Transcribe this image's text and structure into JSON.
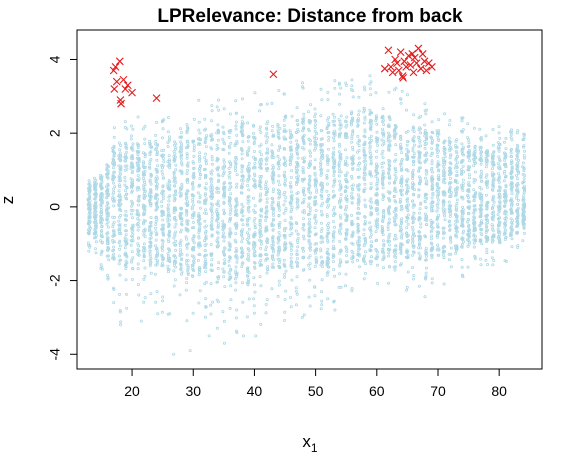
{
  "chart_data": {
    "type": "scatter",
    "title": "LPRelevance: Distance from back",
    "xlabel": "x",
    "xlabel_subscript": "1",
    "ylabel": "z",
    "xlim": [
      11,
      87
    ],
    "ylim": [
      -4.4,
      4.8
    ],
    "xticks": [
      20,
      30,
      40,
      50,
      60,
      70,
      80
    ],
    "yticks": [
      -4,
      -2,
      0,
      2,
      4
    ],
    "grid": false,
    "legend": "none",
    "colors": {
      "background_points": "#add8e6",
      "highlight_points": "#e31a1c"
    },
    "series": [
      {
        "marker": "circle",
        "color": "#add8e6",
        "band_columns": {
          "x": [
            13,
            14,
            15,
            16,
            17,
            18,
            19,
            20,
            21,
            22,
            23,
            24,
            25,
            26,
            27,
            28,
            29,
            30,
            31,
            32,
            33,
            34,
            35,
            36,
            37,
            38,
            39,
            40,
            41,
            42,
            43,
            44,
            45,
            46,
            47,
            48,
            49,
            50,
            51,
            52,
            53,
            54,
            55,
            56,
            57,
            58,
            59,
            60,
            61,
            62,
            63,
            64,
            65,
            66,
            67,
            68,
            69,
            70,
            71,
            72,
            73,
            74,
            75,
            76,
            77,
            78,
            79,
            80,
            81,
            82,
            83,
            84
          ],
          "z_low": [
            -1.2,
            -1.5,
            -1.7,
            -2.0,
            -2.4,
            -3.2,
            -2.8,
            -2.5,
            -2.6,
            -2.7,
            -2.6,
            -2.8,
            -2.9,
            -3.0,
            -2.9,
            -2.8,
            -3.4,
            -3.0,
            -2.9,
            -3.0,
            -3.2,
            -3.4,
            -3.2,
            -3.3,
            -3.6,
            -3.0,
            -3.5,
            -2.9,
            -3.2,
            -3.0,
            -2.8,
            -2.9,
            -3.1,
            -2.9,
            -2.8,
            -3.0,
            -2.9,
            -2.7,
            -2.9,
            -2.8,
            -2.8,
            -2.7,
            -2.5,
            -2.6,
            -2.6,
            -2.5,
            -2.4,
            -2.4,
            -2.5,
            -2.3,
            -2.3,
            -2.2,
            -2.3,
            -2.2,
            -2.4,
            -2.5,
            -2.2,
            -2.2,
            -2.3,
            -2.1,
            -2.1,
            -2.0,
            -1.9,
            -1.9,
            -1.8,
            -1.6,
            -1.6,
            -1.7,
            -1.5,
            -1.4,
            -1.2,
            -1.0
          ],
          "z_high": [
            0.8,
            0.9,
            1.2,
            1.6,
            2.3,
            2.5,
            2.4,
            2.3,
            2.5,
            2.4,
            2.4,
            2.5,
            2.7,
            2.6,
            2.5,
            2.7,
            2.8,
            2.8,
            2.9,
            2.9,
            2.8,
            2.9,
            3.0,
            2.9,
            3.0,
            3.1,
            3.0,
            3.1,
            3.2,
            3.1,
            3.2,
            3.2,
            3.1,
            3.2,
            3.3,
            3.4,
            3.3,
            3.3,
            3.4,
            3.6,
            3.5,
            3.5,
            3.4,
            3.6,
            3.5,
            3.5,
            3.6,
            3.6,
            3.6,
            3.4,
            3.3,
            3.2,
            3.1,
            3.0,
            3.0,
            2.9,
            2.9,
            2.9,
            2.7,
            2.6,
            2.5,
            2.5,
            2.5,
            2.3,
            2.2,
            2.2,
            2.1,
            2.3,
            2.1,
            2.1,
            2.2,
            2.0
          ]
        },
        "scattered_outer": [
          [
            26.8,
            -4.0
          ],
          [
            29.5,
            -3.9
          ],
          [
            32.6,
            -3.5
          ],
          [
            35.1,
            -3.7
          ],
          [
            38.2,
            -3.5
          ],
          [
            40.2,
            -3.5
          ],
          [
            18.1,
            -3.2
          ],
          [
            17.0,
            -2.6
          ],
          [
            21.5,
            -3.1
          ],
          [
            24.2,
            -2.9
          ]
        ]
      },
      {
        "marker": "x",
        "color": "#e31a1c",
        "points": [
          [
            17.0,
            3.7
          ],
          [
            17.3,
            3.8
          ],
          [
            17.1,
            3.2
          ],
          [
            17.5,
            3.4
          ],
          [
            18.0,
            3.95
          ],
          [
            18.1,
            2.9
          ],
          [
            18.2,
            2.8
          ],
          [
            18.6,
            3.45
          ],
          [
            18.9,
            3.2
          ],
          [
            19.3,
            3.3
          ],
          [
            20.0,
            3.1
          ],
          [
            24.0,
            2.95
          ],
          [
            43.1,
            3.6
          ],
          [
            61.3,
            3.75
          ],
          [
            61.9,
            4.25
          ],
          [
            62.3,
            3.8
          ],
          [
            62.6,
            3.65
          ],
          [
            63.0,
            4.0
          ],
          [
            63.3,
            3.9
          ],
          [
            63.6,
            3.7
          ],
          [
            63.9,
            4.2
          ],
          [
            64.2,
            3.55
          ],
          [
            64.5,
            3.95
          ],
          [
            64.8,
            3.8
          ],
          [
            65.2,
            4.1
          ],
          [
            65.5,
            3.85
          ],
          [
            66.0,
            3.65
          ],
          [
            66.2,
            4.05
          ],
          [
            66.5,
            3.9
          ],
          [
            66.8,
            4.3
          ],
          [
            67.2,
            3.75
          ],
          [
            67.5,
            4.15
          ],
          [
            67.8,
            3.95
          ],
          [
            68.1,
            3.7
          ],
          [
            68.5,
            3.9
          ],
          [
            69.0,
            3.8
          ],
          [
            64.3,
            3.5
          ],
          [
            65.8,
            4.15
          ]
        ]
      }
    ]
  }
}
